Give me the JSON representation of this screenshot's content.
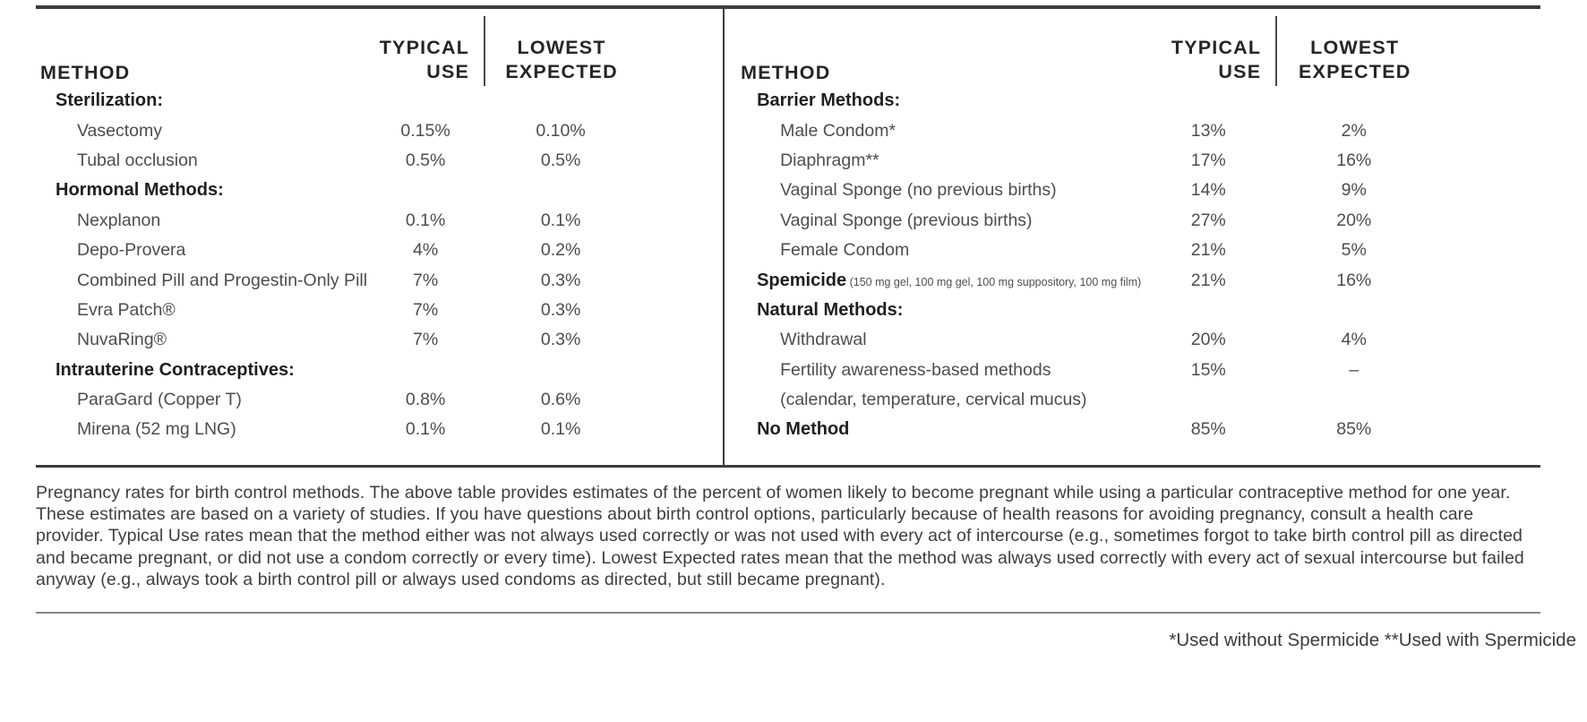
{
  "table": {
    "header": {
      "method": "METHOD",
      "typical1": "TYPICAL",
      "typical2": "USE",
      "lowest1": "LOWEST",
      "lowest2": "EXPECTED"
    },
    "left": {
      "rows": [
        {
          "type": "section",
          "label": "Sterilization:",
          "typical": "",
          "lowest": ""
        },
        {
          "type": "item",
          "label": "Vasectomy",
          "typical": "0.15%",
          "lowest": "0.10%"
        },
        {
          "type": "item",
          "label": "Tubal occlusion",
          "typical": "0.5%",
          "lowest": "0.5%"
        },
        {
          "type": "section",
          "label": "Hormonal Methods:",
          "typical": "",
          "lowest": ""
        },
        {
          "type": "item",
          "label": "Nexplanon",
          "typical": "0.1%",
          "lowest": "0.1%"
        },
        {
          "type": "item",
          "label": "Depo-Provera",
          "typical": "4%",
          "lowest": "0.2%"
        },
        {
          "type": "item",
          "label": "Combined Pill and Progestin-Only Pill",
          "typical": "7%",
          "lowest": "0.3%"
        },
        {
          "type": "item",
          "label": "Evra Patch®",
          "typical": "7%",
          "lowest": "0.3%"
        },
        {
          "type": "item",
          "label": "NuvaRing®",
          "typical": "7%",
          "lowest": "0.3%"
        },
        {
          "type": "section",
          "label": "Intrauterine Contraceptives:",
          "typical": "",
          "lowest": ""
        },
        {
          "type": "item",
          "label": "ParaGard (Copper T)",
          "typical": "0.8%",
          "lowest": "0.6%"
        },
        {
          "type": "item",
          "label": "Mirena (52 mg LNG)",
          "typical": "0.1%",
          "lowest": "0.1%"
        }
      ]
    },
    "right": {
      "rows": [
        {
          "type": "section",
          "label": "Barrier Methods:",
          "typical": "",
          "lowest": ""
        },
        {
          "type": "item",
          "label": "Male Condom*",
          "typical": "13%",
          "lowest": "2%"
        },
        {
          "type": "item",
          "label": "Diaphragm**",
          "typical": "17%",
          "lowest": "16%"
        },
        {
          "type": "item",
          "label": "Vaginal Sponge (no previous births)",
          "typical": "14%",
          "lowest": "9%"
        },
        {
          "type": "item",
          "label": "Vaginal Sponge (previous births)",
          "typical": "27%",
          "lowest": "20%"
        },
        {
          "type": "item",
          "label": "Female Condom",
          "typical": "21%",
          "lowest": "5%"
        },
        {
          "type": "bold",
          "label": "Spemicide",
          "note": "(150 mg gel, 100 mg gel, 100 mg suppository,  100 mg film)",
          "typical": "21%",
          "lowest": "16%"
        },
        {
          "type": "section",
          "label": "Natural Methods:",
          "typical": "",
          "lowest": ""
        },
        {
          "type": "item",
          "label": "Withdrawal",
          "typical": "20%",
          "lowest": "4%"
        },
        {
          "type": "item",
          "label": "Fertility awareness-based methods",
          "typical": "15%",
          "lowest": "–"
        },
        {
          "type": "cont",
          "label": "(calendar, temperature, cervical mucus)",
          "typical": "",
          "lowest": ""
        },
        {
          "type": "bold",
          "label": "No Method",
          "typical": "85%",
          "lowest": "85%"
        }
      ]
    }
  },
  "description": "Pregnancy rates for birth control methods. The above table provides estimates of the percent of women likely to become pregnant while using a particular contraceptive method for one year. These estimates are based on a variety of studies. If you have questions about birth control options, particularly because of health reasons for avoiding pregnancy, consult a health care provider. Typical Use rates mean that the method either was not always used correctly or was not used with every act of intercourse (e.g., sometimes forgot to take birth control pill as directed and became pregnant, or did not use a condom correctly or every time). Lowest Expected rates mean that the method was always used correctly with every act of sexual intercourse but failed anyway (e.g., always took a birth control pill or always used condoms as directed, but still became pregnant).",
  "footnote": "*Used without Spermicide **Used with Spermicide",
  "colors": {
    "rule_dark": "#3d3d3d",
    "rule_light": "#8a8a8a",
    "heading_text": "#262626",
    "body_text": "#4d4d4d"
  }
}
